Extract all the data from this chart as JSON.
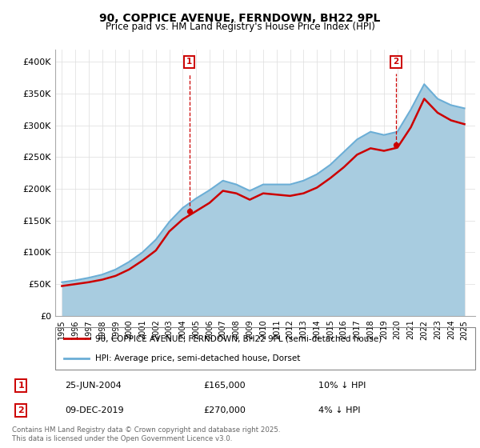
{
  "title": "90, COPPICE AVENUE, FERNDOWN, BH22 9PL",
  "subtitle": "Price paid vs. HM Land Registry's House Price Index (HPI)",
  "legend_line1": "90, COPPICE AVENUE, FERNDOWN, BH22 9PL (semi-detached house)",
  "legend_line2": "HPI: Average price, semi-detached house, Dorset",
  "annotation1_label": "1",
  "annotation1_date": "25-JUN-2004",
  "annotation1_price": "£165,000",
  "annotation1_hpi": "10% ↓ HPI",
  "annotation2_label": "2",
  "annotation2_date": "09-DEC-2019",
  "annotation2_price": "£270,000",
  "annotation2_hpi": "4% ↓ HPI",
  "footer": "Contains HM Land Registry data © Crown copyright and database right 2025.\nThis data is licensed under the Open Government Licence v3.0.",
  "hpi_color": "#a8cce0",
  "hpi_line_color": "#6baed6",
  "price_color": "#cc0000",
  "annotation_box_color": "#cc0000",
  "background_color": "#ffffff",
  "ylim": [
    0,
    420000
  ],
  "yticks": [
    0,
    50000,
    100000,
    150000,
    200000,
    250000,
    300000,
    350000,
    400000
  ],
  "ytick_labels": [
    "£0",
    "£50K",
    "£100K",
    "£150K",
    "£200K",
    "£250K",
    "£300K",
    "£350K",
    "£400K"
  ],
  "hpi_years": [
    1995,
    1996,
    1997,
    1998,
    1999,
    2000,
    2001,
    2002,
    2003,
    2004,
    2005,
    2006,
    2007,
    2008,
    2009,
    2010,
    2011,
    2012,
    2013,
    2014,
    2015,
    2016,
    2017,
    2018,
    2019,
    2020,
    2021,
    2022,
    2023,
    2024,
    2025
  ],
  "hpi_values": [
    53000,
    56000,
    60000,
    65000,
    73000,
    85000,
    100000,
    120000,
    148000,
    170000,
    185000,
    198000,
    213000,
    207000,
    197000,
    207000,
    207000,
    207000,
    213000,
    223000,
    238000,
    258000,
    278000,
    290000,
    285000,
    290000,
    325000,
    365000,
    342000,
    332000,
    327000
  ],
  "price_years": [
    1995,
    1996,
    1997,
    1998,
    1999,
    2000,
    2001,
    2002,
    2003,
    2004,
    2005,
    2006,
    2007,
    2008,
    2009,
    2010,
    2011,
    2012,
    2013,
    2014,
    2015,
    2016,
    2017,
    2018,
    2019,
    2020,
    2021,
    2022,
    2023,
    2024,
    2025
  ],
  "price_values": [
    47000,
    50000,
    53000,
    57000,
    63000,
    73000,
    87000,
    103000,
    133000,
    152000,
    165000,
    178000,
    197000,
    193000,
    183000,
    193000,
    191000,
    189000,
    193000,
    202000,
    217000,
    234000,
    254000,
    264000,
    260000,
    265000,
    297000,
    342000,
    320000,
    308000,
    302000
  ],
  "ann1_x": 2004.5,
  "ann1_y": 165000,
  "ann2_x": 2019.9,
  "ann2_y": 270000,
  "xlim_left": 1994.5,
  "xlim_right": 2025.8,
  "xtick_years": [
    1995,
    1996,
    1997,
    1998,
    1999,
    2000,
    2001,
    2002,
    2003,
    2004,
    2005,
    2006,
    2007,
    2008,
    2009,
    2010,
    2011,
    2012,
    2013,
    2014,
    2015,
    2016,
    2017,
    2018,
    2019,
    2020,
    2021,
    2022,
    2023,
    2024,
    2025
  ]
}
